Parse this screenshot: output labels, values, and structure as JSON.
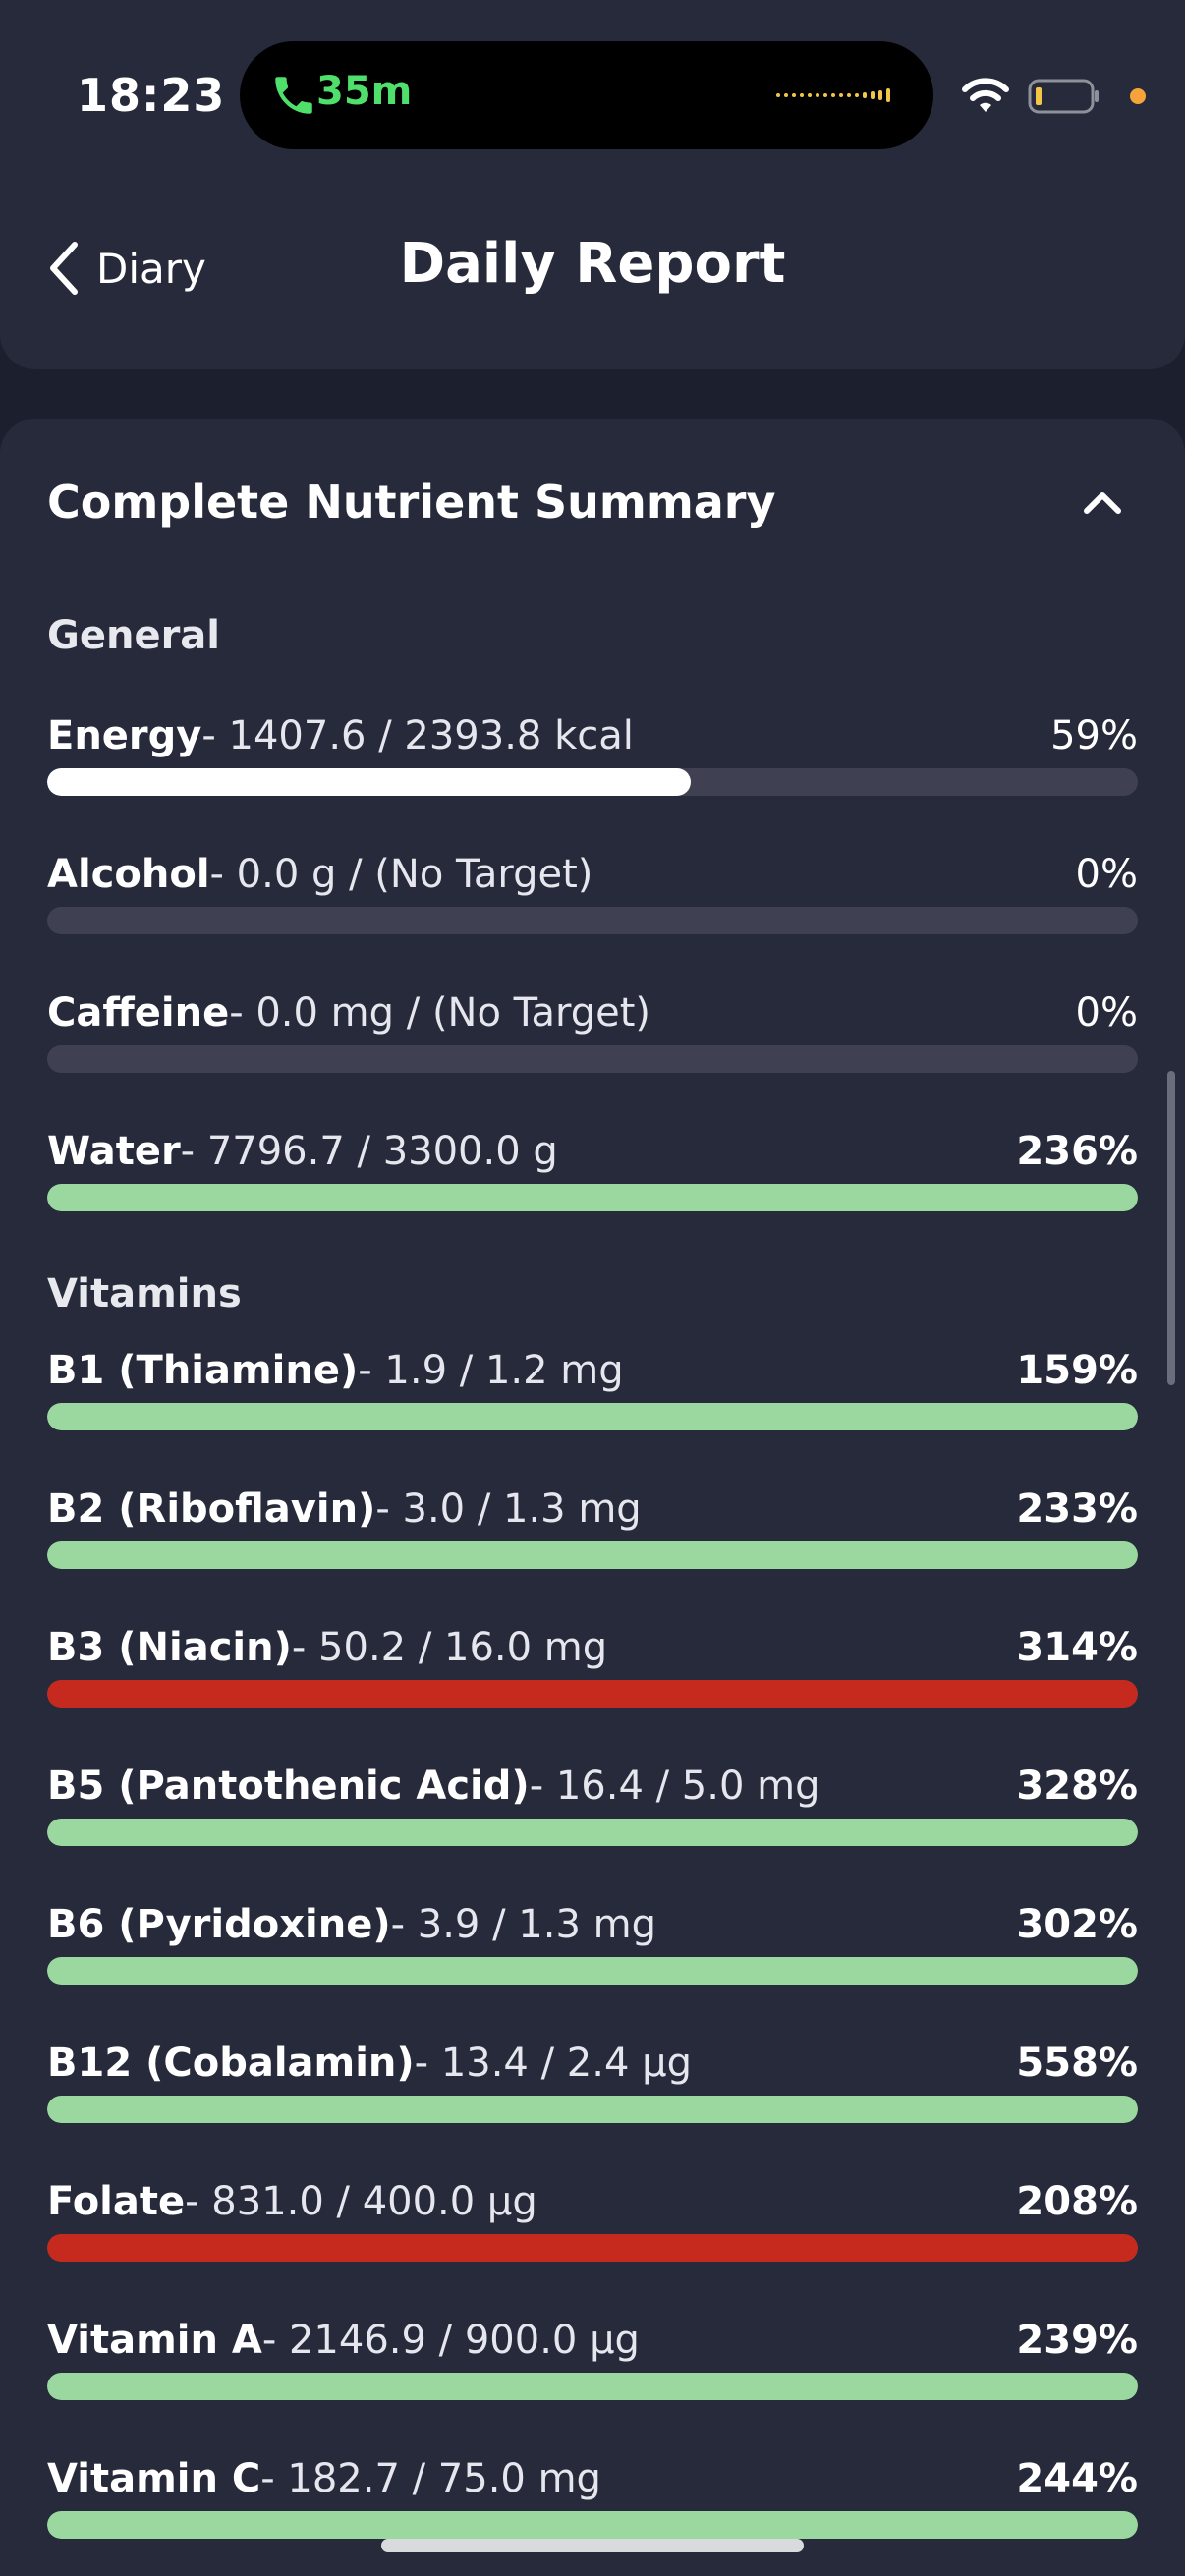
{
  "status_bar": {
    "time": "18:23",
    "call_duration": "35m",
    "icons": [
      "phone-icon",
      "waveform-icon",
      "wifi-icon",
      "battery-icon"
    ]
  },
  "nav": {
    "back_label": "Diary",
    "title": "Daily Report"
  },
  "summary": {
    "title": "Complete Nutrient Summary",
    "sections": [
      {
        "title": "General",
        "items": [
          {
            "name": "Energy",
            "values": "- 1407.6 / 2393.8 kcal",
            "pct": "59%",
            "fill": 0.59,
            "color": "#ffffff",
            "bold_pct": false
          },
          {
            "name": "Alcohol",
            "values": "- 0.0 g / (No Target)",
            "pct": "0%",
            "fill": 0,
            "color": "#3f4152",
            "bold_pct": false
          },
          {
            "name": "Caffeine",
            "values": "- 0.0 mg / (No Target)",
            "pct": "0%",
            "fill": 0,
            "color": "#3f4152",
            "bold_pct": false
          },
          {
            "name": "Water",
            "values": "- 7796.7 / 3300.0 g",
            "pct": "236%",
            "fill": 1,
            "color": "#9ad8a0",
            "bold_pct": true
          }
        ]
      },
      {
        "title": "Vitamins",
        "items": [
          {
            "name": "B1 (Thiamine)",
            "values": "- 1.9 / 1.2 mg",
            "pct": "159%",
            "fill": 1,
            "color": "#9ad8a0",
            "bold_pct": true
          },
          {
            "name": "B2 (Riboflavin)",
            "values": "- 3.0 / 1.3 mg",
            "pct": "233%",
            "fill": 1,
            "color": "#9ad8a0",
            "bold_pct": true
          },
          {
            "name": "B3 (Niacin)",
            "values": "- 50.2 / 16.0 mg",
            "pct": "314%",
            "fill": 1,
            "color": "#c62a1e",
            "bold_pct": true
          },
          {
            "name": "B5 (Pantothenic Acid)",
            "values": "- 16.4 / 5.0 mg",
            "pct": "328%",
            "fill": 1,
            "color": "#9ad8a0",
            "bold_pct": true
          },
          {
            "name": "B6 (Pyridoxine)",
            "values": "- 3.9 / 1.3 mg",
            "pct": "302%",
            "fill": 1,
            "color": "#9ad8a0",
            "bold_pct": true
          },
          {
            "name": "B12 (Cobalamin)",
            "values": "- 13.4 / 2.4 µg",
            "pct": "558%",
            "fill": 1,
            "color": "#9ad8a0",
            "bold_pct": true
          },
          {
            "name": "Folate",
            "values": "- 831.0 / 400.0 µg",
            "pct": "208%",
            "fill": 1,
            "color": "#c62a1e",
            "bold_pct": true
          },
          {
            "name": "Vitamin A",
            "values": "- 2146.9 / 900.0 µg",
            "pct": "239%",
            "fill": 1,
            "color": "#9ad8a0",
            "bold_pct": true
          },
          {
            "name": "Vitamin C",
            "values": "- 182.7 / 75.0 mg",
            "pct": "244%",
            "fill": 1,
            "color": "#9ad8a0",
            "bold_pct": true
          }
        ]
      }
    ]
  }
}
